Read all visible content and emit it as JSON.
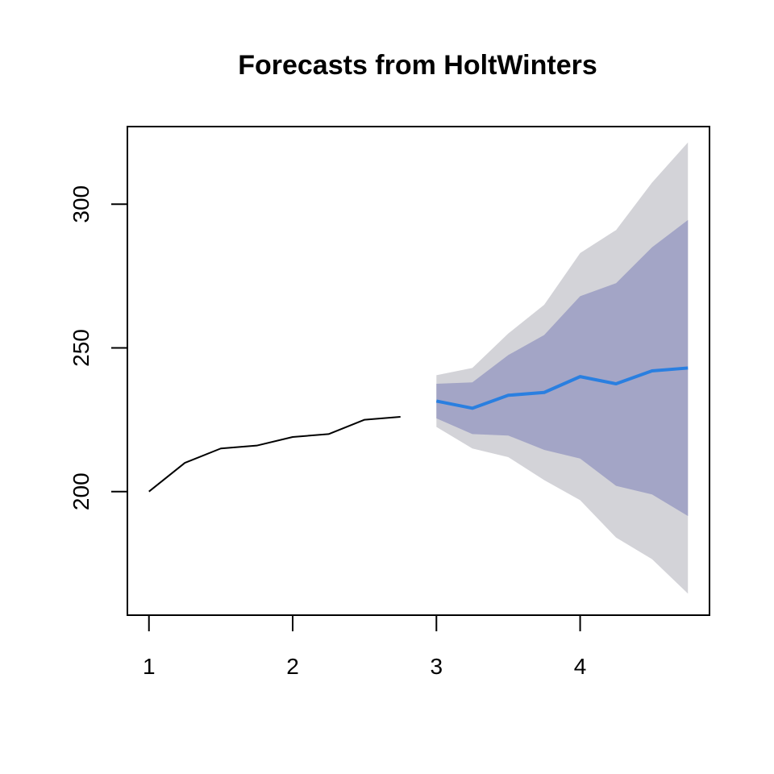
{
  "chart_data": {
    "type": "line",
    "title": "Forecasts from HoltWinters",
    "xlabel": "",
    "ylabel": "",
    "xlim": [
      0.85,
      4.9
    ],
    "ylim": [
      157,
      327
    ],
    "x_ticks": [
      1,
      2,
      3,
      4
    ],
    "y_ticks": [
      200,
      250,
      300
    ],
    "grid": false,
    "series": [
      {
        "x": [
          1,
          1.25,
          1.5,
          1.75,
          2,
          2.25,
          2.5,
          2.75
        ],
        "values": [
          200,
          210,
          215,
          216,
          219,
          220,
          225,
          226
        ],
        "color": "#000000"
      },
      {
        "x": [
          3,
          3.25,
          3.5,
          3.75,
          4,
          4.25,
          4.5,
          4.75
        ],
        "values": [
          231.5,
          229,
          233.5,
          234.5,
          240,
          237.5,
          242,
          243
        ],
        "color": "#2a7fe0"
      }
    ],
    "intervals": [
      {
        "level": "95",
        "color": "#d3d3d8",
        "x": [
          3,
          3.25,
          3.5,
          3.75,
          4,
          4.25,
          4.5,
          4.75
        ],
        "upper": [
          240.5,
          243,
          255,
          265,
          283,
          291,
          307.5,
          321.5
        ],
        "lower": [
          222.5,
          215,
          212,
          204,
          197,
          184,
          176.5,
          164.5
        ]
      },
      {
        "level": "80",
        "color": "#a3a5c6",
        "x": [
          3,
          3.25,
          3.5,
          3.75,
          4,
          4.25,
          4.5,
          4.75
        ],
        "upper": [
          237.5,
          238,
          247.5,
          254.5,
          268,
          272.5,
          285,
          294.5
        ],
        "lower": [
          225.5,
          220,
          219.5,
          214.5,
          211.5,
          202,
          199,
          191.5
        ]
      }
    ]
  }
}
